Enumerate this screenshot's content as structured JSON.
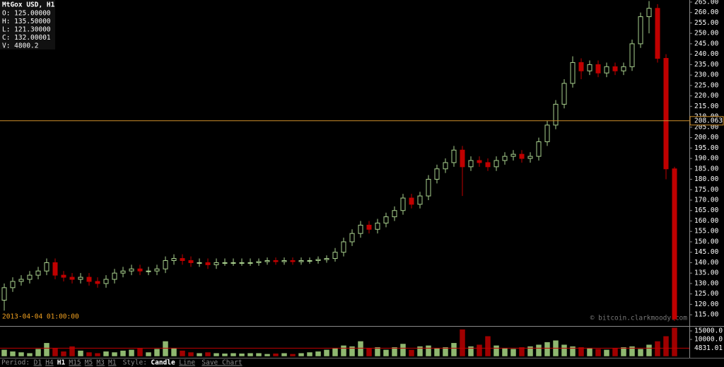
{
  "chart_data": {
    "type": "candlestick",
    "title": "MtGox USD, H1",
    "info_lines": [
      "O: 125.00000",
      "H: 135.50000",
      "L: 121.30000",
      "C: 132.00001",
      "V: 4800.2"
    ],
    "cursor_time": "2013-04-04 01:00:00",
    "watermark": "© bitcoin.clarkmoody.com",
    "open": [
      122,
      128,
      131,
      132,
      134,
      136,
      140,
      134,
      133,
      132,
      133,
      131,
      130,
      132,
      135,
      136,
      137,
      136,
      136,
      137,
      141,
      142,
      141,
      140,
      140,
      139,
      140,
      140,
      140,
      140,
      140,
      140.5,
      141,
      140.5,
      141,
      140.5,
      141,
      141,
      141.5,
      142,
      145,
      150,
      154,
      158,
      156,
      159,
      162,
      165,
      171,
      168,
      172,
      180,
      185,
      188,
      194,
      186,
      189,
      188,
      186,
      189,
      191,
      192,
      190,
      191,
      198,
      206,
      216,
      226,
      236,
      232,
      235,
      231,
      234,
      232,
      234,
      245,
      258,
      262,
      238,
      185
    ],
    "high": [
      130,
      133,
      134,
      136,
      138,
      142,
      142,
      136,
      135,
      135,
      135,
      133,
      134,
      137,
      138,
      139,
      139,
      138,
      139,
      143,
      144,
      144,
      143,
      142,
      142,
      142,
      142,
      142,
      142,
      142,
      142,
      142.5,
      142.5,
      142.5,
      142.5,
      142.5,
      142.5,
      143,
      143.5,
      147,
      152,
      156,
      160,
      160,
      161,
      164,
      167,
      173,
      173,
      174,
      182,
      187,
      190,
      196,
      196,
      191,
      191,
      190,
      191,
      193,
      194,
      194,
      193,
      200,
      208,
      218,
      228,
      239,
      238,
      237,
      237,
      236,
      236,
      236,
      247,
      260,
      265.5,
      264,
      240,
      186
    ],
    "low": [
      117,
      126,
      129,
      130,
      132,
      134,
      132,
      131,
      130,
      130,
      129,
      128,
      128,
      130,
      133,
      134,
      134,
      134,
      134,
      135,
      139,
      139,
      138,
      138,
      137,
      137,
      138.5,
      138.5,
      138.5,
      138.5,
      138.5,
      139,
      139,
      139,
      139,
      139,
      139.5,
      139.5,
      140,
      140.5,
      143,
      148,
      152,
      154,
      154,
      157,
      160,
      163,
      166,
      166,
      170,
      178,
      183,
      186,
      172,
      184,
      186,
      184,
      184,
      187,
      189,
      188,
      188,
      189,
      196,
      204,
      214,
      224,
      228,
      230,
      229,
      229,
      230,
      230,
      232,
      243,
      250,
      236,
      180,
      112
    ],
    "close": [
      128,
      131,
      132,
      134,
      136,
      140,
      134,
      133,
      132,
      133,
      131,
      130,
      132,
      135,
      136,
      137,
      136,
      136,
      137,
      141,
      142,
      141,
      140,
      140,
      139,
      140,
      140,
      140,
      140,
      140,
      140.5,
      141,
      140.5,
      141,
      140.5,
      141,
      141,
      141.5,
      142,
      145,
      150,
      154,
      158,
      156,
      159,
      162,
      165,
      171,
      168,
      172,
      180,
      185,
      188,
      194,
      186,
      189,
      188,
      186,
      189,
      191,
      192,
      190,
      191,
      198,
      206,
      216,
      226,
      236,
      232,
      235,
      231,
      234,
      232,
      234,
      245,
      258,
      262,
      238,
      185,
      113
    ],
    "volume": [
      4000,
      3000,
      2500,
      2000,
      4500,
      8000,
      5000,
      3000,
      6000,
      3500,
      2500,
      2000,
      3000,
      2500,
      3500,
      4000,
      5000,
      2500,
      4500,
      9000,
      5000,
      3500,
      2500,
      2000,
      2500,
      2000,
      1800,
      2000,
      1800,
      2000,
      2000,
      1500,
      1800,
      2000,
      1500,
      2000,
      2500,
      3000,
      4000,
      5000,
      6500,
      6000,
      9000,
      5000,
      5500,
      4000,
      5500,
      7500,
      4000,
      6000,
      6500,
      5000,
      5500,
      8000,
      16000,
      6000,
      7000,
      12000,
      6500,
      5000,
      4500,
      5500,
      6000,
      7000,
      8500,
      9500,
      7000,
      6000,
      5500,
      5000,
      4500,
      4000,
      5000,
      5500,
      6000,
      4500,
      7000,
      9000,
      12000,
      17000
    ],
    "up_color": "#a9d18e",
    "down_color": "#c00000",
    "price_line_color": "#d0902a",
    "volume_line_color": "#c00000",
    "price_line": 208.063,
    "volume_average": 4831.01,
    "ylim": [
      110.3,
      266
    ],
    "yticks": [
      {
        "value": 115,
        "label": "115.00"
      },
      {
        "value": 120,
        "label": "120.00"
      },
      {
        "value": 125,
        "label": "125.00"
      },
      {
        "value": 130,
        "label": "130.00"
      },
      {
        "value": 135,
        "label": "135.00"
      },
      {
        "value": 140,
        "label": "140.00"
      },
      {
        "value": 145,
        "label": "145.00"
      },
      {
        "value": 150,
        "label": "150.00"
      },
      {
        "value": 155,
        "label": "155.00"
      },
      {
        "value": 160,
        "label": "160.00"
      },
      {
        "value": 165,
        "label": "165.00"
      },
      {
        "value": 170,
        "label": "170.00"
      },
      {
        "value": 175,
        "label": "175.00"
      },
      {
        "value": 180,
        "label": "180.00"
      },
      {
        "value": 185,
        "label": "185.00"
      },
      {
        "value": 190,
        "label": "190.00"
      },
      {
        "value": 195,
        "label": "195.00"
      },
      {
        "value": 200,
        "label": "200.00"
      },
      {
        "value": 205,
        "label": "205.00"
      },
      {
        "value": 210,
        "label": "210.00"
      },
      {
        "value": 215,
        "label": "215.00"
      },
      {
        "value": 220,
        "label": "220.00"
      },
      {
        "value": 225,
        "label": "225.00"
      },
      {
        "value": 230,
        "label": "230.00"
      },
      {
        "value": 235,
        "label": "235.00"
      },
      {
        "value": 240,
        "label": "240.00"
      },
      {
        "value": 245,
        "label": "245.00"
      },
      {
        "value": 250,
        "label": "250.00"
      },
      {
        "value": 255,
        "label": "255.00"
      },
      {
        "value": 260,
        "label": "260.00"
      },
      {
        "value": 265,
        "label": "265.00"
      }
    ],
    "y2lim": [
      0,
      17500
    ],
    "y2ticks": [
      {
        "value": 15000,
        "label": "15000.0"
      },
      {
        "value": 10000,
        "label": "10000.0"
      }
    ]
  },
  "footer": {
    "period_label": "Period:",
    "periods": [
      "D1",
      "H4",
      "H1",
      "M15",
      "M5",
      "M3",
      "M1"
    ],
    "active_period": 2,
    "style_label": "Style:",
    "styles": [
      "Candle",
      "Line"
    ],
    "active_style": 0,
    "save": "Save Chart"
  }
}
